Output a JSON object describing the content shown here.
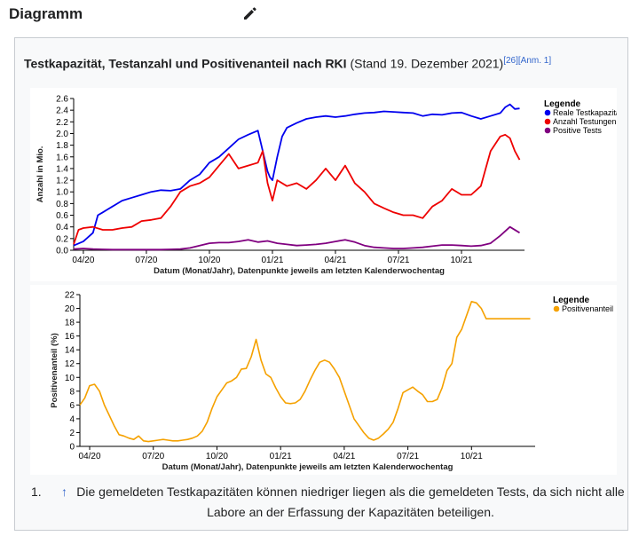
{
  "section": {
    "title": "Diagramm",
    "edit_icon": "pencil-icon"
  },
  "caption": {
    "bold": "Testkapazität, Testanzahl und Positivenanteil nach RKI",
    "normal": " (Stand 19. Dezember 2021)",
    "ref1": "[26]",
    "ref2": "[Anm. 1]"
  },
  "footnote": {
    "number": "1.",
    "arrow": "↑",
    "text": "Die gemeldeten Testkapazitäten können niedriger liegen als die gemeldeten Tests, da sich nicht alle Labore an der Erfassung der Kapazitäten beteiligen."
  },
  "chart_data": [
    {
      "type": "line",
      "xlabel": "Datum (Monat/Jahr), Datenpunkte jeweils am letzten Kalenderwochentag",
      "ylabel": "Anzahl in Mio.",
      "x_ticks": [
        "04/20",
        "07/20",
        "10/20",
        "01/21",
        "04/21",
        "07/21",
        "10/21"
      ],
      "y_ticks": [
        "0.0",
        "0.2",
        "0.4",
        "0.6",
        "0.8",
        "1.0",
        "1.2",
        "1.4",
        "1.6",
        "1.8",
        "2.0",
        "2.2",
        "2.4",
        "2.6"
      ],
      "ylim": [
        0,
        2.6
      ],
      "x_range_weeks": [
        0,
        93
      ],
      "grid": false,
      "legend_title": "Legende",
      "legend_placement": "top-right",
      "series": [
        {
          "name": "Reale Testkapazität",
          "color": "#0000ee",
          "x": [
            0,
            2,
            4,
            5,
            6,
            7,
            8,
            10,
            12,
            14,
            16,
            18,
            20,
            22,
            24,
            26,
            28,
            30,
            32,
            34,
            36,
            38,
            40,
            40.5,
            41,
            42,
            43,
            44,
            46,
            48,
            50,
            52,
            54,
            56,
            58,
            60,
            62,
            64,
            66,
            68,
            70,
            72,
            74,
            76,
            78,
            80,
            82,
            84,
            86,
            88,
            89,
            90,
            91,
            92
          ],
          "values": [
            0.08,
            0.15,
            0.3,
            0.6,
            0.65,
            0.7,
            0.75,
            0.85,
            0.9,
            0.95,
            1.0,
            1.03,
            1.02,
            1.05,
            1.2,
            1.3,
            1.5,
            1.6,
            1.75,
            1.9,
            1.98,
            2.05,
            1.35,
            1.25,
            1.2,
            1.6,
            1.95,
            2.1,
            2.18,
            2.25,
            2.28,
            2.3,
            2.28,
            2.3,
            2.33,
            2.35,
            2.36,
            2.38,
            2.37,
            2.36,
            2.35,
            2.3,
            2.33,
            2.32,
            2.35,
            2.36,
            2.3,
            2.25,
            2.3,
            2.35,
            2.45,
            2.5,
            2.42,
            2.43
          ]
        },
        {
          "name": "Anzahl Testungen",
          "color": "#ee0000",
          "x": [
            0,
            1,
            2,
            4,
            6,
            8,
            10,
            12,
            14,
            16,
            18,
            20,
            22,
            24,
            26,
            28,
            30,
            32,
            34,
            36,
            38,
            39,
            40,
            41,
            42,
            44,
            46,
            48,
            50,
            52,
            54,
            56,
            58,
            60,
            62,
            64,
            66,
            68,
            70,
            72,
            74,
            76,
            78,
            80,
            82,
            84,
            85,
            86,
            88,
            89,
            90,
            91,
            92
          ],
          "values": [
            0.1,
            0.35,
            0.38,
            0.4,
            0.35,
            0.35,
            0.38,
            0.4,
            0.5,
            0.52,
            0.55,
            0.75,
            1.0,
            1.1,
            1.15,
            1.25,
            1.45,
            1.65,
            1.4,
            1.45,
            1.5,
            1.7,
            1.15,
            0.85,
            1.2,
            1.1,
            1.15,
            1.05,
            1.2,
            1.4,
            1.2,
            1.45,
            1.15,
            1.0,
            0.8,
            0.72,
            0.65,
            0.6,
            0.6,
            0.55,
            0.75,
            0.85,
            1.05,
            0.95,
            0.95,
            1.1,
            1.4,
            1.7,
            1.95,
            1.98,
            1.92,
            1.7,
            1.55
          ]
        },
        {
          "name": "Positive Tests",
          "color": "#800080",
          "x": [
            0,
            2,
            4,
            6,
            8,
            10,
            12,
            14,
            16,
            18,
            20,
            22,
            24,
            26,
            28,
            30,
            32,
            34,
            36,
            38,
            40,
            42,
            44,
            46,
            48,
            50,
            52,
            54,
            56,
            58,
            60,
            62,
            64,
            66,
            68,
            70,
            72,
            74,
            76,
            78,
            80,
            82,
            84,
            86,
            88,
            90,
            92
          ],
          "values": [
            0.02,
            0.03,
            0.02,
            0.015,
            0.01,
            0.01,
            0.01,
            0.01,
            0.01,
            0.01,
            0.015,
            0.02,
            0.04,
            0.08,
            0.12,
            0.13,
            0.13,
            0.15,
            0.18,
            0.14,
            0.16,
            0.12,
            0.1,
            0.08,
            0.09,
            0.1,
            0.12,
            0.15,
            0.18,
            0.14,
            0.08,
            0.05,
            0.04,
            0.03,
            0.03,
            0.04,
            0.05,
            0.07,
            0.09,
            0.09,
            0.08,
            0.07,
            0.08,
            0.12,
            0.25,
            0.4,
            0.3
          ]
        }
      ]
    },
    {
      "type": "line",
      "xlabel": "Datum (Monat/Jahr), Datenpunkte jeweils am letzten Kalenderwochentag",
      "ylabel": "Positivenanteil (%)",
      "x_ticks": [
        "04/20",
        "07/20",
        "10/20",
        "01/21",
        "04/21",
        "07/21",
        "10/21"
      ],
      "y_ticks": [
        "0",
        "2",
        "4",
        "6",
        "8",
        "10",
        "12",
        "14",
        "16",
        "18",
        "20",
        "22"
      ],
      "ylim": [
        0,
        22
      ],
      "x_range_weeks": [
        0,
        93
      ],
      "grid": false,
      "legend_title": "Legende",
      "legend_placement": "top-right",
      "series": [
        {
          "name": "Positivenanteil",
          "color": "#f5a100",
          "x": [
            0,
            1,
            2,
            3,
            4,
            5,
            6,
            7,
            8,
            9,
            10,
            11,
            12,
            13,
            14,
            15,
            16,
            17,
            18,
            19,
            20,
            21,
            22,
            23,
            24,
            25,
            26,
            27,
            28,
            29,
            30,
            31,
            32,
            33,
            34,
            35,
            36,
            37,
            38,
            39,
            40,
            41,
            42,
            43,
            44,
            45,
            46,
            47,
            48,
            49,
            50,
            51,
            52,
            53,
            54,
            55,
            56,
            57,
            58,
            59,
            60,
            61,
            62,
            63,
            64,
            65,
            66,
            67,
            68,
            69,
            70,
            71,
            72,
            73,
            74,
            75,
            76,
            77,
            78,
            79,
            80,
            81,
            82,
            83,
            84,
            85,
            86,
            87,
            88,
            89,
            90,
            91,
            92
          ],
          "values": [
            6,
            7,
            8.8,
            9,
            8,
            6,
            4.5,
            3,
            1.7,
            1.5,
            1.2,
            1,
            1.5,
            0.8,
            0.7,
            0.8,
            0.9,
            1,
            0.9,
            0.8,
            0.8,
            0.9,
            1,
            1.2,
            1.5,
            2.2,
            3.5,
            5.5,
            7.2,
            8.2,
            9.2,
            9.5,
            10,
            11.2,
            11.3,
            13,
            15.5,
            12.5,
            10.5,
            10,
            8.5,
            7.2,
            6.3,
            6.2,
            6.3,
            6.8,
            8,
            9.6,
            11,
            12.2,
            12.5,
            12.2,
            11.2,
            10,
            8,
            6,
            4,
            3,
            2,
            1.2,
            0.9,
            1.2,
            1.8,
            2.5,
            3.5,
            5.5,
            7.8,
            8.2,
            8.6,
            8,
            7.5,
            6.5,
            6.5,
            6.8,
            8.5,
            11,
            12,
            15.8,
            17,
            19,
            21,
            20.8,
            20,
            18.5,
            18.5,
            18.5,
            18.5,
            18.5,
            18.5,
            18.5,
            18.5,
            18.5,
            18.5
          ]
        }
      ]
    }
  ]
}
